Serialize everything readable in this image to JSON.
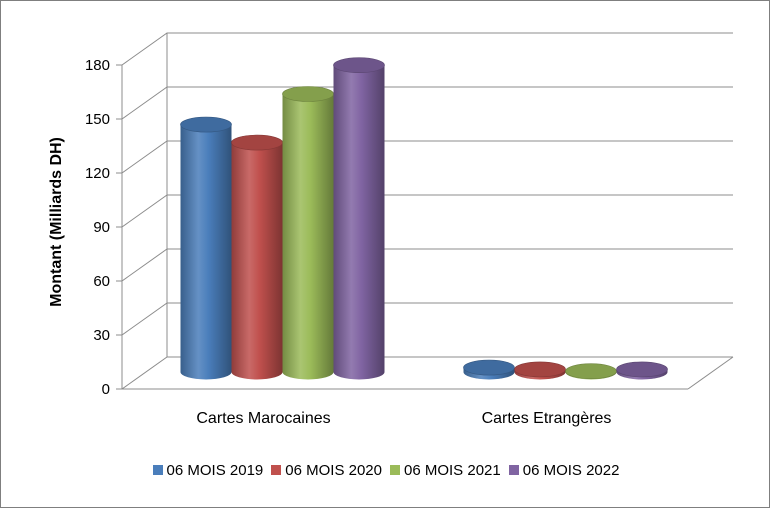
{
  "chart_data": {
    "type": "bar",
    "style": "3d-cylinder",
    "categories": [
      "Cartes Marocaines",
      "Cartes Etrangères"
    ],
    "ylabel": "Montant (Milliards DH)",
    "xlabel": "",
    "ylim": [
      0,
      180
    ],
    "yticks": [
      "0",
      "30",
      "60",
      "90",
      "120",
      "150",
      "180"
    ],
    "grid": true,
    "legend_position": "bottom",
    "series": [
      {
        "name": "06 MOIS 2019",
        "color": "#4a7ebb",
        "values": [
          138,
          3
        ]
      },
      {
        "name": "06 MOIS 2020",
        "color": "#c0504d",
        "values": [
          128,
          2
        ]
      },
      {
        "name": "06 MOIS 2021",
        "color": "#9bbb59",
        "values": [
          155,
          1
        ]
      },
      {
        "name": "06 MOIS 2022",
        "color": "#8064a2",
        "values": [
          171,
          2
        ]
      }
    ]
  }
}
